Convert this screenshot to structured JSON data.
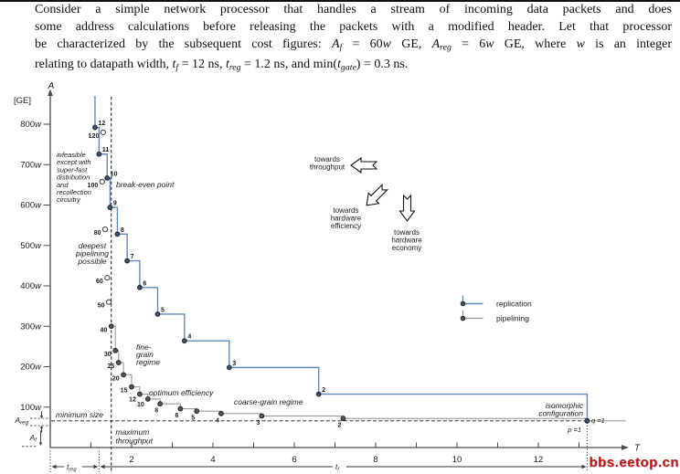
{
  "document": {
    "lines": [
      {
        "justify": true,
        "segments": [
          {
            "text": "Consider a simple network processor that handles a stream of incoming data packets and does"
          }
        ]
      },
      {
        "justify": true,
        "segments": [
          {
            "text": "some address calculations before releasing the packets with a modified header. Let that processor"
          }
        ]
      },
      {
        "justify": true,
        "segments": [
          {
            "text": "be characterized by the subsequent cost figures: "
          },
          {
            "text": "A",
            "style": "i"
          },
          {
            "text": "f",
            "style": "sub"
          },
          {
            "text": " = 60"
          },
          {
            "text": "w",
            "style": "i"
          },
          {
            "text": " GE, "
          },
          {
            "text": "A",
            "style": "i"
          },
          {
            "text": "reg",
            "style": "sub"
          },
          {
            "text": " = 6"
          },
          {
            "text": "w",
            "style": "i"
          },
          {
            "text": " GE, where "
          },
          {
            "text": "w",
            "style": "i"
          },
          {
            "text": " is an integer"
          }
        ]
      },
      {
        "justify": false,
        "segments": [
          {
            "text": "relating to datapath width, "
          },
          {
            "text": "t",
            "style": "i"
          },
          {
            "text": "f",
            "style": "sub"
          },
          {
            "text": " = 12 ns, "
          },
          {
            "text": "t",
            "style": "i"
          },
          {
            "text": "reg",
            "style": "sub"
          },
          {
            "text": " = 1.2 ns, and min("
          },
          {
            "text": "t",
            "style": "i"
          },
          {
            "text": "gate",
            "style": "sub"
          },
          {
            "text": ") = 0.3 ns."
          }
        ]
      }
    ]
  },
  "watermark": {
    "text": "bbs.eetop.cn",
    "color": "#cc1111"
  },
  "chart_data": {
    "type": "line",
    "title": "",
    "xlabel": "T",
    "ylabel": "A",
    "ylabel_units": "[GE]",
    "xlim": [
      0,
      14.2
    ],
    "ylim": [
      0,
      880
    ],
    "grid": false,
    "x_ticks": [
      1,
      2,
      3,
      4,
      5,
      6,
      7,
      8,
      9,
      10,
      11,
      12,
      13
    ],
    "x_labeled_ticks": [
      2,
      4,
      6,
      8,
      10,
      12
    ],
    "y_ticks": [
      100,
      200,
      300,
      400,
      500,
      600,
      700,
      800
    ],
    "y_tick_suffix": "w",
    "legend_position": "upper right inside",
    "series": [
      {
        "name": "pipelining",
        "color": "#9a9a9a",
        "marker_fill": "#4d565e",
        "marker_edge": "#22262a",
        "style": "staircase",
        "head_from_A": null,
        "tail_to_T": 14.15,
        "points": [
          {
            "label": "40",
            "T": 1.5,
            "A": 300
          },
          {
            "label": "30",
            "T": 1.6,
            "A": 240
          },
          {
            "label": "25",
            "T": 1.68,
            "A": 210
          },
          {
            "label": "20",
            "T": 1.8,
            "A": 180
          },
          {
            "label": "15",
            "T": 2.0,
            "A": 150
          },
          {
            "label": "12",
            "T": 2.2,
            "A": 132
          },
          {
            "label": "10",
            "T": 2.4,
            "A": 120
          },
          {
            "label": "8",
            "T": 2.7,
            "A": 108
          },
          {
            "label": "6",
            "T": 3.2,
            "A": 96
          },
          {
            "label": "5",
            "T": 3.6,
            "A": 90
          },
          {
            "label": "4",
            "T": 4.2,
            "A": 84
          },
          {
            "label": "3",
            "T": 5.2,
            "A": 78
          },
          {
            "label": "2",
            "T": 7.2,
            "A": 72
          },
          {
            "label": "1",
            "T": 13.2,
            "A": 66
          }
        ],
        "infeasible_points": [
          {
            "label": "120",
            "T": 1.3,
            "A": 780
          },
          {
            "label": "100",
            "T": 1.32,
            "A": 660
          },
          {
            "label": "80",
            "T": 1.35,
            "A": 540
          },
          {
            "label": "60",
            "T": 1.4,
            "A": 420
          },
          {
            "label": "50",
            "T": 1.44,
            "A": 360
          }
        ]
      },
      {
        "name": "replication",
        "color": "#6189ba",
        "marker_fill": "#3f5068",
        "marker_edge": "#1d2735",
        "style": "staircase",
        "head_from_A": 870,
        "tail_to_T": null,
        "points": [
          {
            "label": "12",
            "T": 1.1,
            "A": 792
          },
          {
            "label": "11",
            "T": 1.2,
            "A": 726
          },
          {
            "label": "10",
            "T": 1.32,
            "A": 660
          },
          {
            "label": "9",
            "T": 1.47,
            "A": 594
          },
          {
            "label": "8",
            "T": 1.65,
            "A": 528
          },
          {
            "label": "7",
            "T": 1.89,
            "A": 462
          },
          {
            "label": "6",
            "T": 2.2,
            "A": 396
          },
          {
            "label": "5",
            "T": 2.64,
            "A": 330
          },
          {
            "label": "4",
            "T": 3.3,
            "A": 264
          },
          {
            "label": "3",
            "T": 4.4,
            "A": 198
          },
          {
            "label": "2",
            "T": 6.6,
            "A": 132
          },
          {
            "label": "1",
            "T": 13.2,
            "A": 66
          }
        ],
        "infeasible_points": []
      }
    ],
    "reference_lines": {
      "max_throughput_T": 1.5,
      "min_size_A": 66,
      "isomorphic_T": 13.2
    },
    "side_labels": [
      {
        "id": "areg",
        "base": "A",
        "sub": "reg"
      },
      {
        "id": "af",
        "base": "A",
        "sub": "f"
      }
    ],
    "time_brackets": [
      {
        "id": "treg",
        "base": "t",
        "sub": "reg",
        "from_T": 0,
        "to_T": 1.2
      },
      {
        "id": "tf",
        "base": "t",
        "sub": "f",
        "from_T": 1.2,
        "to_T": 13.2
      }
    ],
    "annotations": [
      {
        "id": "infeasible",
        "lines": [
          "infeasible",
          "except with",
          "super-fast",
          "distribution",
          "and",
          "recollection",
          "circuitry"
        ]
      },
      {
        "id": "break_even",
        "lines": [
          "break-even point"
        ]
      },
      {
        "id": "deepest",
        "lines": [
          "deepest",
          "pipelining",
          "possible"
        ]
      },
      {
        "id": "fine_grain",
        "lines": [
          "fine-",
          "grain",
          "regime"
        ]
      },
      {
        "id": "optimum",
        "lines": [
          "optimum efficiency"
        ]
      },
      {
        "id": "coarse",
        "lines": [
          "coarse-grain regime"
        ]
      },
      {
        "id": "isomorphic",
        "lines": [
          "isomorphic",
          "configuration"
        ]
      },
      {
        "id": "min_size",
        "lines": [
          "minimum size"
        ]
      },
      {
        "id": "max_throughput",
        "lines": [
          "maximum",
          "throughput"
        ]
      },
      {
        "id": "q1",
        "lines": [
          "q =1"
        ]
      },
      {
        "id": "p1",
        "lines": [
          "p =1"
        ]
      }
    ],
    "direction_arrows": [
      {
        "id": "arrow_throughput",
        "lines": [
          "towards",
          "throughput"
        ],
        "direction": "left"
      },
      {
        "id": "arrow_efficiency",
        "lines": [
          "towards",
          "hardware",
          "efficiency"
        ],
        "direction": "down-left"
      },
      {
        "id": "arrow_economy",
        "lines": [
          "towards",
          "hardware",
          "economy"
        ],
        "direction": "down"
      }
    ]
  }
}
